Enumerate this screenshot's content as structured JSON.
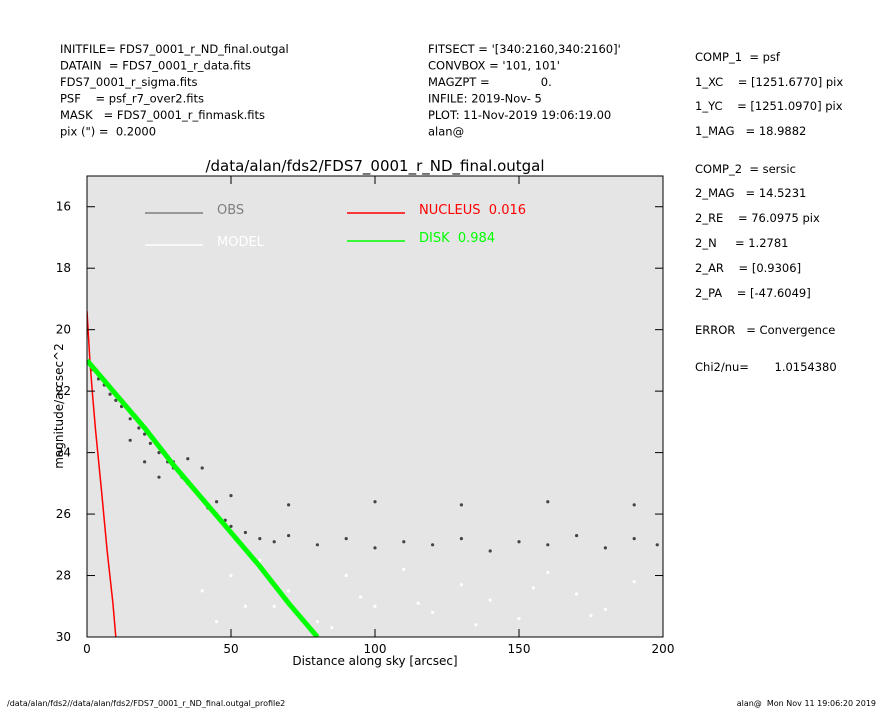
{
  "header": {
    "left": [
      "INITFILE= FDS7_0001_r_ND_final.outgal",
      "DATAIN  = FDS7_0001_r_data.fits",
      "FDS7_0001_r_sigma.fits",
      "PSF    = psf_r7_over2.fits",
      "MASK   = FDS7_0001_r_finmask.fits",
      "pix (\") =  0.2000"
    ],
    "middle": [
      "FITSECT = '[340:2160,340:2160]'",
      "CONVBOX = '101, 101'",
      "MAGZPT =              0.",
      "INFILE: 2019-Nov- 5",
      "PLOT: 11-Nov-2019 19:06:19.00",
      "alan@"
    ],
    "right": [
      "COMP_1  = psf",
      "1_XC    = [1251.6770] pix",
      "1_YC    = [1251.0970] pix",
      "1_MAG   = 18.9882",
      "COMP_2  = sersic",
      "2_MAG   = 14.5231",
      "2_RE    = 76.0975 pix",
      "2_N     = 1.2781",
      "2_AR    = [0.9306]",
      "2_PA    = [-47.6049]",
      "ERROR   = Convergence",
      "Chi2/nu=       1.0154380"
    ]
  },
  "footer": {
    "left": "/data/alan/fds2//data/alan/fds2/FDS7_0001_r_ND_final.outgal_profile2",
    "right": "alan@  Mon Nov 11 19:06:20 2019"
  },
  "chart_data": {
    "type": "scatter",
    "title": "/data/alan/fds2/FDS7_0001_r_ND_final.outgal",
    "x_label": "Distance along sky [arcsec]",
    "y_label": "magnitude/arcsec^2",
    "xlim": [
      0,
      200
    ],
    "xticks": [
      0,
      50,
      100,
      150,
      200
    ],
    "ylim": [
      30,
      15
    ],
    "yticks": [
      16,
      18,
      20,
      22,
      24,
      26,
      28,
      30
    ],
    "series": [
      {
        "name": "OBS",
        "color": "#7f7f7f",
        "mode": "markers",
        "x": [
          2,
          4,
          6,
          8,
          10,
          12,
          15,
          18,
          20,
          22,
          25,
          28,
          30,
          33,
          35,
          38,
          40,
          42,
          45,
          48,
          50,
          55,
          60,
          65,
          70,
          80,
          90,
          100,
          110,
          120,
          130,
          140,
          150,
          160,
          170,
          180,
          190,
          198,
          15,
          20,
          25,
          30,
          35,
          40,
          45,
          50,
          70,
          100,
          130,
          160,
          190
        ],
        "values": [
          21.3,
          21.6,
          21.8,
          22.1,
          22.3,
          22.5,
          22.9,
          23.2,
          23.4,
          23.7,
          24.0,
          24.3,
          24.5,
          24.8,
          25.0,
          25.3,
          25.5,
          25.8,
          26.0,
          26.2,
          26.4,
          26.6,
          26.8,
          26.9,
          26.7,
          27.0,
          26.8,
          27.1,
          26.9,
          27.0,
          26.8,
          27.2,
          26.9,
          27.0,
          26.7,
          27.1,
          26.8,
          27.0,
          23.6,
          24.3,
          24.8,
          24.3,
          24.2,
          24.5,
          25.6,
          25.4,
          25.7,
          25.6,
          25.7,
          25.6,
          25.7
        ]
      },
      {
        "name": "MODEL",
        "color": "#ffffff",
        "mode": "markers",
        "x": [
          40,
          50,
          55,
          60,
          70,
          80,
          90,
          100,
          110,
          120,
          130,
          140,
          150,
          160,
          170,
          180,
          190,
          45,
          65,
          85,
          95,
          115,
          135,
          155,
          175
        ],
        "values": [
          28.5,
          28.0,
          29.0,
          27.5,
          28.5,
          29.5,
          28.0,
          29.0,
          27.8,
          29.2,
          28.3,
          28.8,
          29.4,
          27.9,
          28.6,
          29.1,
          28.2,
          29.5,
          29.0,
          29.7,
          28.7,
          28.9,
          29.6,
          28.4,
          29.3
        ]
      },
      {
        "name": "NUCLEUS  0.016",
        "color": "#ff0000",
        "mode": "lines",
        "x": [
          0,
          1,
          2,
          3,
          5,
          7,
          9,
          10
        ],
        "values": [
          19.4,
          21.0,
          22.2,
          23.3,
          25.2,
          27.2,
          28.9,
          30
        ]
      },
      {
        "name": "DISK  0.984",
        "color": "#00ff00",
        "mode": "lines",
        "x": [
          0,
          10,
          20,
          30,
          40,
          50,
          60,
          70,
          80
        ],
        "values": [
          21.0,
          22.1,
          23.2,
          24.4,
          25.5,
          26.6,
          27.7,
          28.9,
          30.0
        ]
      }
    ],
    "plot_bg": "#e5e5e5"
  }
}
